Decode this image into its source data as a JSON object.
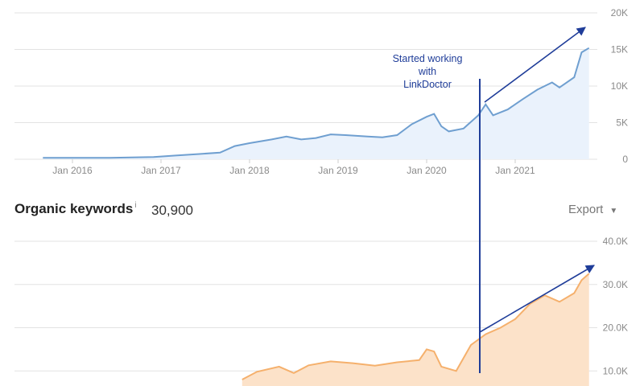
{
  "section": {
    "title": "Organic keywords",
    "info": "i",
    "value": "30,900",
    "export_label": "Export",
    "export_caret": "▼"
  },
  "annotation": {
    "lines": [
      "Started working",
      "with",
      "LinkDoctor"
    ]
  },
  "colors": {
    "traffic_line": "#6f9fd0",
    "traffic_fill": "#eaf2fc",
    "keywords_line": "#f5b06c",
    "keywords_fill": "#fce2c9",
    "arrow": "#1f3d99",
    "grid": "#e3e3e3"
  },
  "chart_data": [
    {
      "type": "area",
      "x_ticks": [
        "Jan 2016",
        "Jan 2017",
        "Jan 2018",
        "Jan 2019",
        "Jan 2020",
        "Jan 2021"
      ],
      "y_ticks": [
        "0",
        "5K",
        "10K",
        "15K",
        "20K"
      ],
      "ylim": [
        0,
        20000
      ],
      "grid": true,
      "series": [
        {
          "values": [
            [
              "2015-09",
              200
            ],
            [
              "2016-06",
              200
            ],
            [
              "2016-12",
              300
            ],
            [
              "2017-03",
              500
            ],
            [
              "2017-06",
              700
            ],
            [
              "2017-09",
              900
            ],
            [
              "2017-11",
              1800
            ],
            [
              "2018-01",
              2200
            ],
            [
              "2018-04",
              2700
            ],
            [
              "2018-06",
              3100
            ],
            [
              "2018-08",
              2700
            ],
            [
              "2018-10",
              2900
            ],
            [
              "2018-12",
              3400
            ],
            [
              "2019-02",
              3300
            ],
            [
              "2019-05",
              3100
            ],
            [
              "2019-07",
              3000
            ],
            [
              "2019-09",
              3300
            ],
            [
              "2019-11",
              4800
            ],
            [
              "2020-01",
              5800
            ],
            [
              "2020-02",
              6200
            ],
            [
              "2020-03",
              4500
            ],
            [
              "2020-04",
              3800
            ],
            [
              "2020-06",
              4200
            ],
            [
              "2020-08",
              6000
            ],
            [
              "2020-09",
              7500
            ],
            [
              "2020-10",
              6000
            ],
            [
              "2020-12",
              6800
            ],
            [
              "2021-02",
              8200
            ],
            [
              "2021-04",
              9500
            ],
            [
              "2021-06",
              10500
            ],
            [
              "2021-07",
              9800
            ],
            [
              "2021-09",
              11200
            ],
            [
              "2021-10",
              14600
            ],
            [
              "2021-11",
              15200
            ]
          ]
        }
      ]
    },
    {
      "type": "area",
      "y_ticks": [
        "10.0K",
        "20.0K",
        "30.0K",
        "40.0K"
      ],
      "ylim": [
        0,
        40000
      ],
      "grid": true,
      "series": [
        {
          "values": [
            [
              "2017-12",
              8000
            ],
            [
              "2018-02",
              9800
            ],
            [
              "2018-05",
              11000
            ],
            [
              "2018-07",
              9500
            ],
            [
              "2018-09",
              11300
            ],
            [
              "2018-12",
              12200
            ],
            [
              "2019-03",
              11800
            ],
            [
              "2019-06",
              11200
            ],
            [
              "2019-09",
              12000
            ],
            [
              "2019-12",
              12500
            ],
            [
              "2020-01",
              15000
            ],
            [
              "2020-02",
              14500
            ],
            [
              "2020-03",
              11000
            ],
            [
              "2020-05",
              10000
            ],
            [
              "2020-07",
              16000
            ],
            [
              "2020-09",
              18500
            ],
            [
              "2020-11",
              20000
            ],
            [
              "2021-01",
              22000
            ],
            [
              "2021-03",
              25500
            ],
            [
              "2021-05",
              27500
            ],
            [
              "2021-07",
              26000
            ],
            [
              "2021-09",
              28000
            ],
            [
              "2021-10",
              31000
            ],
            [
              "2021-11",
              32500
            ]
          ]
        }
      ]
    }
  ]
}
